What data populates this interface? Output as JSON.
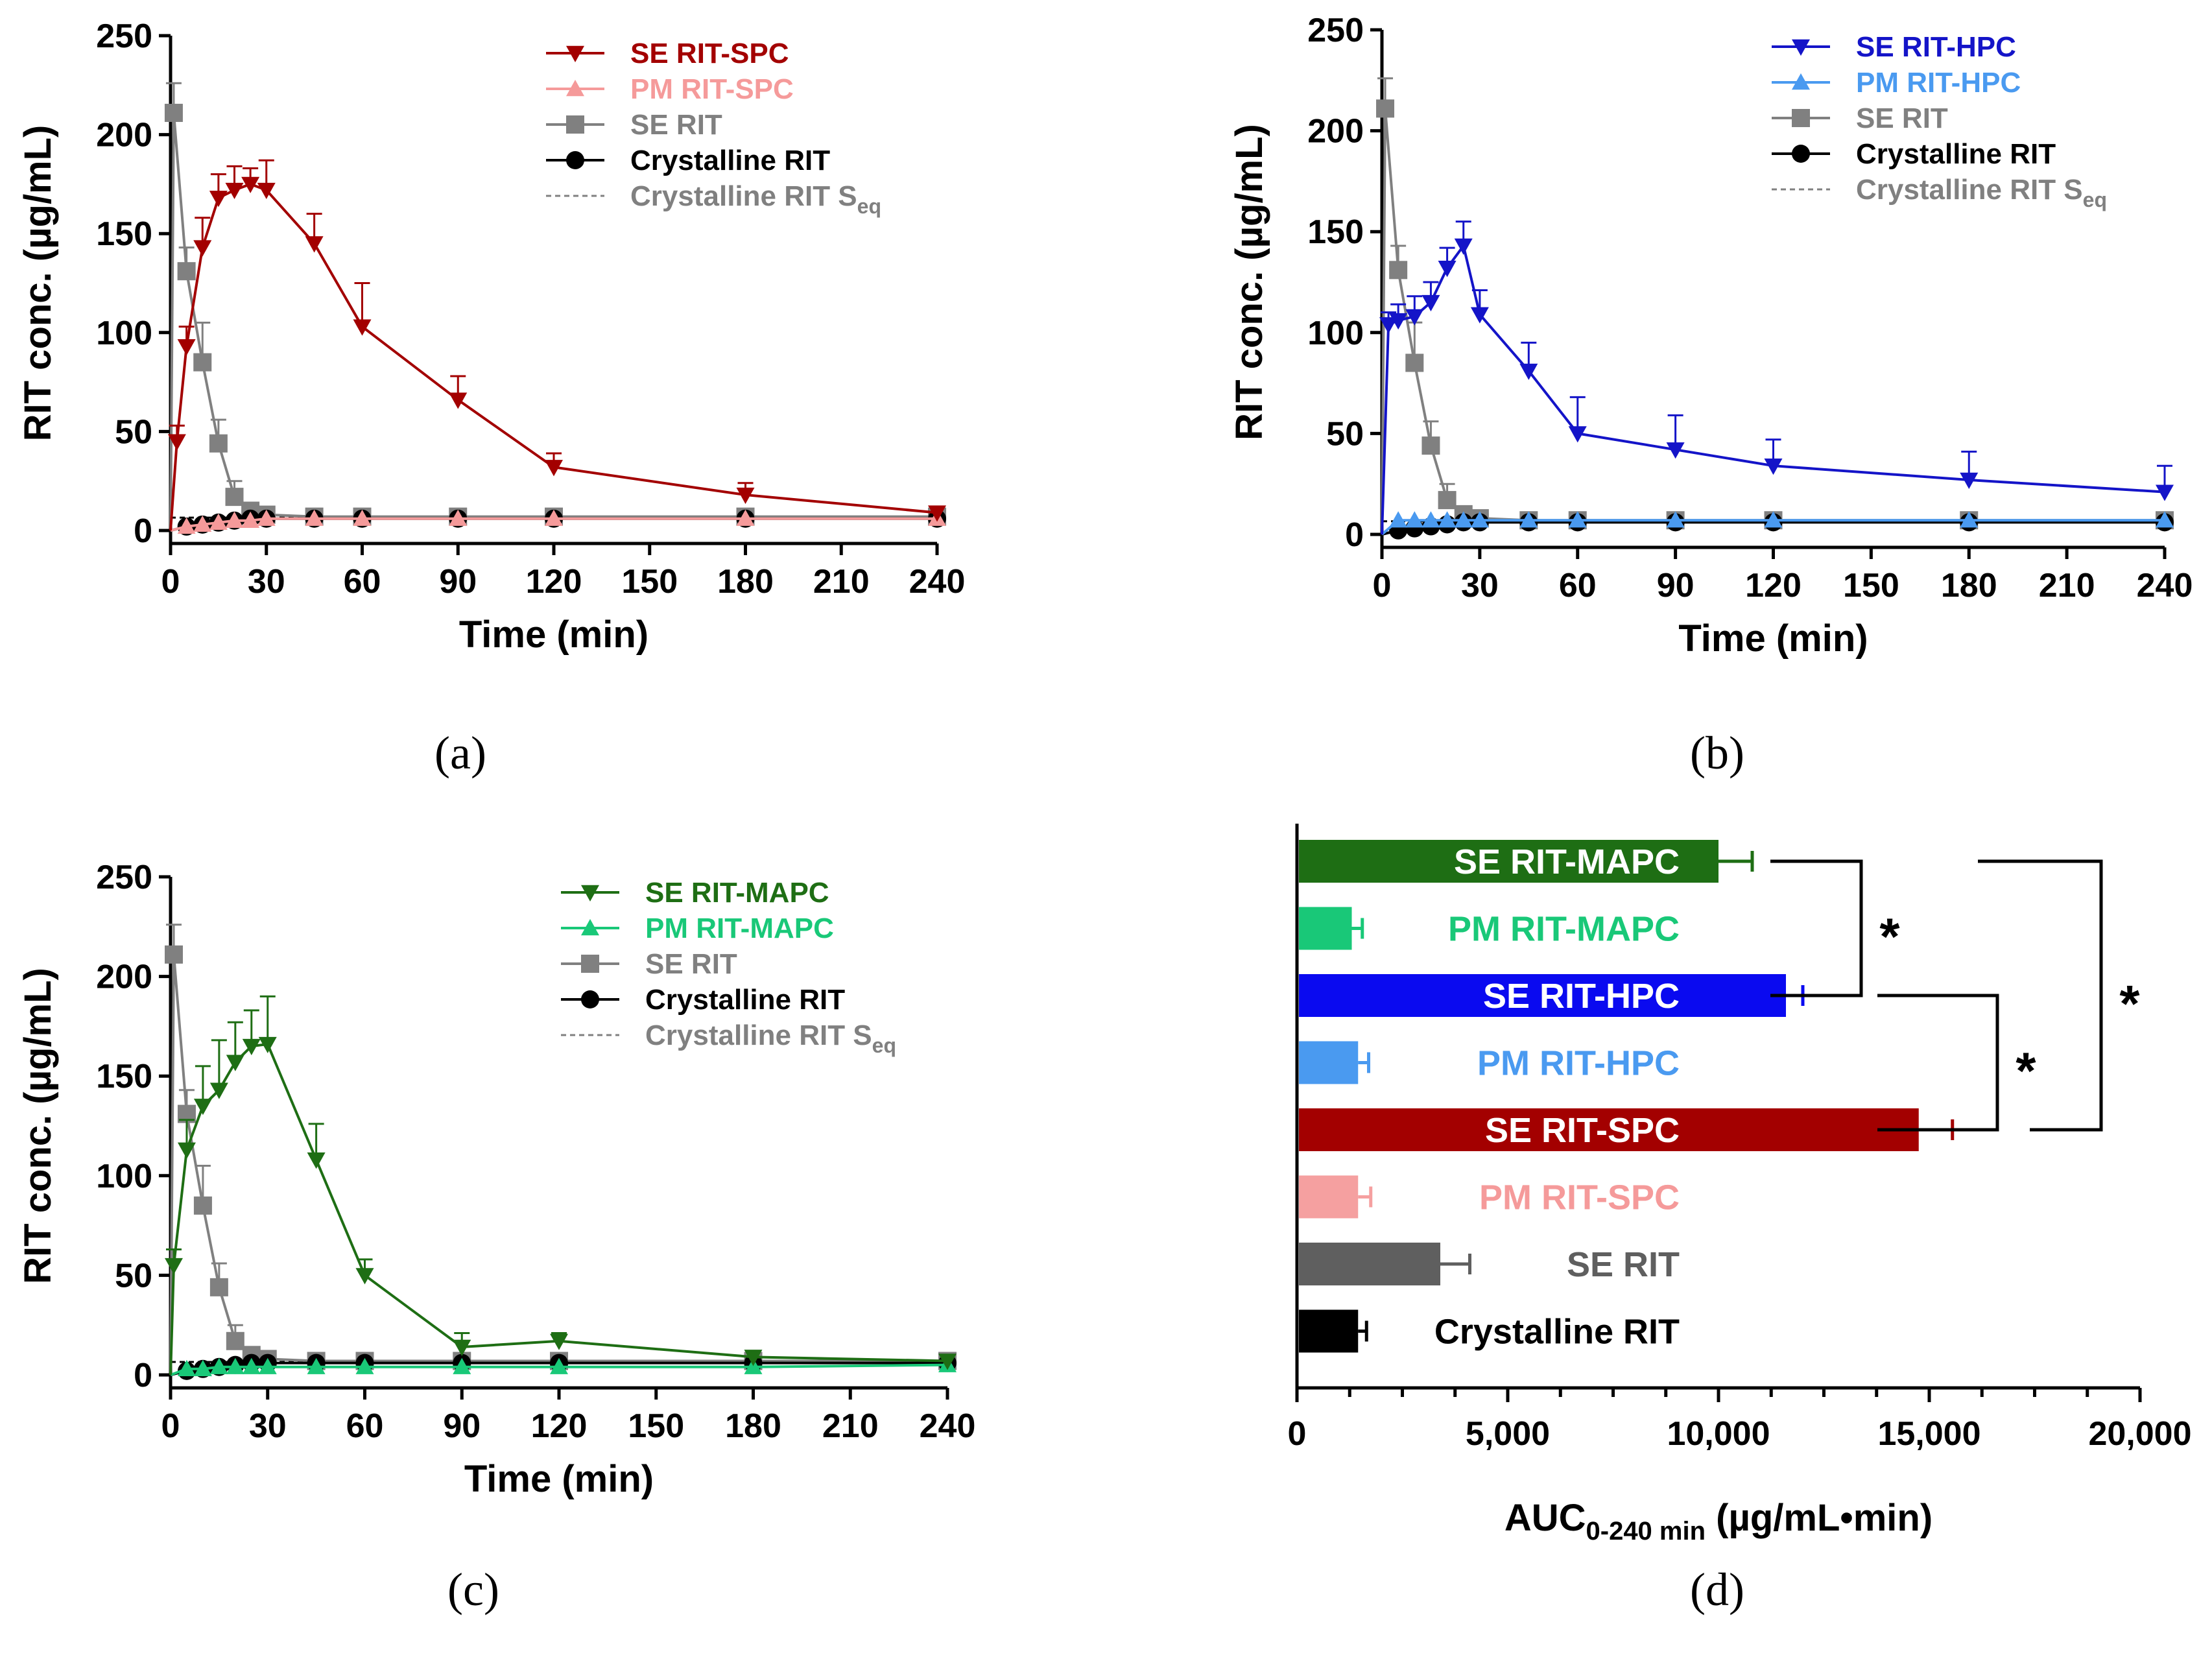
{
  "chart_data": [
    {
      "panel": "a",
      "type": "line",
      "xlabel": "Time (min)",
      "ylabel": "RIT conc. (µg/mL)",
      "xlim": [
        0,
        240
      ],
      "ylim": [
        0,
        250
      ],
      "xticks": [
        0,
        30,
        60,
        90,
        120,
        150,
        180,
        210,
        240
      ],
      "yticks": [
        0,
        50,
        100,
        150,
        200,
        250
      ],
      "legend_position": "top-right",
      "series": [
        {
          "name": "SE  RIT-SPC",
          "color": "#A30000",
          "marker": "triangle-down",
          "x": [
            0,
            2,
            5,
            10,
            15,
            20,
            25,
            30,
            45,
            60,
            90,
            120,
            180,
            240
          ],
          "y": [
            0,
            45,
            93,
            143,
            168,
            172,
            175,
            172,
            145,
            103,
            66,
            32,
            18,
            9
          ],
          "err": [
            0,
            8,
            10,
            15,
            12,
            12,
            8,
            15,
            15,
            22,
            12,
            7,
            6,
            3
          ]
        },
        {
          "name": "PM RIT-SPC",
          "color": "#F59A9A",
          "marker": "triangle-up",
          "x": [
            0,
            5,
            10,
            15,
            20,
            25,
            30,
            45,
            60,
            90,
            120,
            180,
            240
          ],
          "y": [
            0,
            2,
            3,
            4,
            5,
            5,
            6,
            6,
            6,
            6,
            6,
            6,
            6
          ],
          "err": [
            0,
            0,
            0,
            0,
            0,
            0,
            0,
            0,
            0,
            0,
            0,
            0,
            0
          ]
        },
        {
          "name": "SE  RIT",
          "color": "#808080",
          "marker": "square",
          "x": [
            0,
            1,
            5,
            10,
            15,
            20,
            25,
            30,
            45,
            60,
            90,
            120,
            180,
            240
          ],
          "y": [
            0,
            211,
            131,
            85,
            44,
            17,
            10,
            8,
            7,
            7,
            7,
            7,
            7,
            7
          ],
          "err": [
            0,
            15,
            12,
            20,
            12,
            8,
            3,
            2,
            2,
            2,
            2,
            2,
            2,
            2
          ]
        },
        {
          "name": "Crystalline RIT",
          "color": "#000000",
          "marker": "circle",
          "x": [
            0,
            5,
            10,
            15,
            20,
            25,
            30,
            45,
            60,
            90,
            120,
            180,
            240
          ],
          "y": [
            0,
            2,
            3,
            4,
            5,
            6,
            6,
            6,
            6,
            6,
            6,
            6,
            6
          ],
          "err": [
            0,
            0,
            0,
            0,
            0,
            0,
            0,
            0,
            0,
            0,
            0,
            0,
            0
          ]
        }
      ],
      "reference_line": {
        "name": "Crystalline RIT Seq",
        "label_main": "Crystalline RIT S",
        "label_sub": "eq",
        "y": 6.5,
        "color": "#808080"
      }
    },
    {
      "panel": "b",
      "type": "line",
      "xlabel": "Time (min)",
      "ylabel": "RIT conc. (µg/mL)",
      "xlim": [
        0,
        240
      ],
      "ylim": [
        0,
        250
      ],
      "xticks": [
        0,
        30,
        60,
        90,
        120,
        150,
        180,
        210,
        240
      ],
      "yticks": [
        0,
        50,
        100,
        150,
        200,
        250
      ],
      "legend_position": "top-right",
      "series": [
        {
          "name": "SE RIT-HPC",
          "color": "#1414C8",
          "marker": "triangle-down",
          "x": [
            0,
            2,
            5,
            10,
            15,
            20,
            25,
            30,
            45,
            60,
            90,
            120,
            180,
            240
          ],
          "y": [
            0,
            104,
            106,
            108,
            115,
            132,
            143,
            109,
            81,
            50,
            42,
            34,
            27,
            21
          ],
          "err": [
            0,
            6,
            8,
            10,
            10,
            10,
            12,
            12,
            14,
            18,
            17,
            13,
            14,
            13
          ]
        },
        {
          "name": "PM RIT-HPC",
          "color": "#4A9AF0",
          "marker": "triangle-up",
          "x": [
            0,
            5,
            10,
            15,
            20,
            25,
            30,
            45,
            60,
            90,
            120,
            180,
            240
          ],
          "y": [
            0,
            7,
            7,
            7,
            7,
            7,
            7,
            7,
            7,
            7,
            7,
            7,
            7
          ],
          "err": [
            0,
            0,
            0,
            0,
            0,
            0,
            0,
            0,
            0,
            0,
            0,
            0,
            0
          ]
        },
        {
          "name": "SE RIT",
          "color": "#808080",
          "marker": "square",
          "x": [
            0,
            1,
            5,
            10,
            15,
            20,
            25,
            30,
            45,
            60,
            90,
            120,
            180,
            240
          ],
          "y": [
            0,
            211,
            131,
            85,
            44,
            17,
            10,
            8,
            7,
            7,
            7,
            7,
            7,
            7
          ],
          "err": [
            0,
            15,
            12,
            20,
            12,
            8,
            3,
            2,
            2,
            2,
            2,
            2,
            2,
            2
          ]
        },
        {
          "name": "Crystalline RIT",
          "color": "#000000",
          "marker": "circle",
          "x": [
            0,
            5,
            10,
            15,
            20,
            25,
            30,
            45,
            60,
            90,
            120,
            180,
            240
          ],
          "y": [
            0,
            2,
            3,
            4,
            5,
            6,
            6,
            6,
            6,
            6,
            6,
            6,
            6
          ],
          "err": [
            0,
            0,
            0,
            0,
            0,
            0,
            0,
            0,
            0,
            0,
            0,
            0,
            0
          ]
        }
      ],
      "reference_line": {
        "name": "Crystalline RIT Seq",
        "label_main": "Crystalline RIT S",
        "label_sub": "eq",
        "y": 6.5,
        "color": "#808080"
      }
    },
    {
      "panel": "c",
      "type": "line",
      "xlabel": "Time (min)",
      "ylabel": "RIT conc. (µg/mL)",
      "xlim": [
        0,
        240
      ],
      "ylim": [
        0,
        250
      ],
      "xticks": [
        0,
        30,
        60,
        90,
        120,
        150,
        180,
        210,
        240
      ],
      "yticks": [
        0,
        50,
        100,
        150,
        200,
        250
      ],
      "legend_position": "top-right",
      "series": [
        {
          "name": "SE RIT-MAPC",
          "color": "#1E6E14",
          "marker": "triangle-down",
          "x": [
            0,
            1,
            5,
            10,
            15,
            20,
            25,
            30,
            45,
            60,
            90,
            120,
            180,
            240
          ],
          "y": [
            0,
            55,
            113,
            135,
            143,
            157,
            165,
            166,
            108,
            50,
            14,
            17,
            9,
            7
          ],
          "err": [
            0,
            8,
            15,
            20,
            25,
            20,
            18,
            24,
            18,
            8,
            7,
            4,
            3,
            3
          ]
        },
        {
          "name": "PM RIT-MAPC",
          "color": "#19C878",
          "marker": "triangle-up",
          "x": [
            0,
            5,
            10,
            15,
            20,
            25,
            30,
            45,
            60,
            90,
            120,
            180,
            240
          ],
          "y": [
            0,
            3,
            3,
            4,
            4,
            4,
            4,
            4,
            4,
            4,
            4,
            4,
            5
          ],
          "err": [
            0,
            0,
            0,
            0,
            0,
            0,
            0,
            0,
            0,
            0,
            0,
            0,
            0
          ]
        },
        {
          "name": "SE RIT",
          "color": "#808080",
          "marker": "square",
          "x": [
            0,
            1,
            5,
            10,
            15,
            20,
            25,
            30,
            45,
            60,
            90,
            120,
            180,
            240
          ],
          "y": [
            0,
            211,
            131,
            85,
            44,
            17,
            10,
            8,
            7,
            7,
            7,
            7,
            7,
            7
          ],
          "err": [
            0,
            15,
            12,
            20,
            12,
            8,
            3,
            2,
            2,
            2,
            2,
            2,
            2,
            2
          ]
        },
        {
          "name": "Crystalline RIT",
          "color": "#000000",
          "marker": "circle",
          "x": [
            0,
            5,
            10,
            15,
            20,
            25,
            30,
            45,
            60,
            90,
            120,
            180,
            240
          ],
          "y": [
            0,
            2,
            3,
            4,
            5,
            6,
            6,
            6,
            6,
            6,
            6,
            6,
            6
          ],
          "err": [
            0,
            0,
            0,
            0,
            0,
            0,
            0,
            0,
            0,
            0,
            0,
            0,
            0
          ]
        }
      ],
      "reference_line": {
        "name": "Crystalline RIT Seq",
        "label_main": "Crystalline RIT S",
        "label_sub": "eq",
        "y": 6.5,
        "color": "#808080"
      }
    },
    {
      "panel": "d",
      "type": "bar",
      "orientation": "horizontal",
      "xlabel": "AUC0-240 min (µg/mL•min)",
      "xlabel_main": "AUC",
      "xlabel_sub": "0-240 min",
      "xlabel_rest": " (µg/mL•min)",
      "xlim": [
        0,
        20000
      ],
      "xticks": [
        0,
        5000,
        10000,
        15000,
        20000
      ],
      "xtick_labels": [
        "0",
        "5,000",
        "10,000",
        "15,000",
        "20,000"
      ],
      "categories": [
        "SE RIT-MAPC",
        "PM RIT-MAPC",
        "SE RIT-HPC",
        "PM RIT-HPC",
        "SE RIT-SPC",
        "PM RIT-SPC",
        "SE RIT",
        "Crystalline RIT"
      ],
      "values": [
        10000,
        1300,
        11600,
        1450,
        14750,
        1450,
        3400,
        1450
      ],
      "errors": [
        800,
        250,
        400,
        250,
        800,
        300,
        700,
        200
      ],
      "colors": [
        "#1E6E14",
        "#19C878",
        "#0A0AF0",
        "#4A9AF0",
        "#A30000",
        "#F5A0A0",
        "#5F5F5F",
        "#000000"
      ],
      "label_colors": [
        "#ffffff",
        "#19C878",
        "#ffffff",
        "#4A9AF0",
        "#ffffff",
        "#F59A9A",
        "#5F5F5F",
        "#000000"
      ],
      "significance": [
        {
          "between": [
            "SE RIT-MAPC",
            "SE RIT-HPC"
          ],
          "label": "*"
        },
        {
          "between": [
            "SE RIT-HPC",
            "SE RIT-SPC"
          ],
          "label": "*"
        },
        {
          "between": [
            "SE RIT-MAPC",
            "SE RIT-SPC"
          ],
          "label": "*"
        }
      ]
    }
  ],
  "panel_labels": [
    "(a)",
    "(b)",
    "(c)",
    "(d)"
  ]
}
